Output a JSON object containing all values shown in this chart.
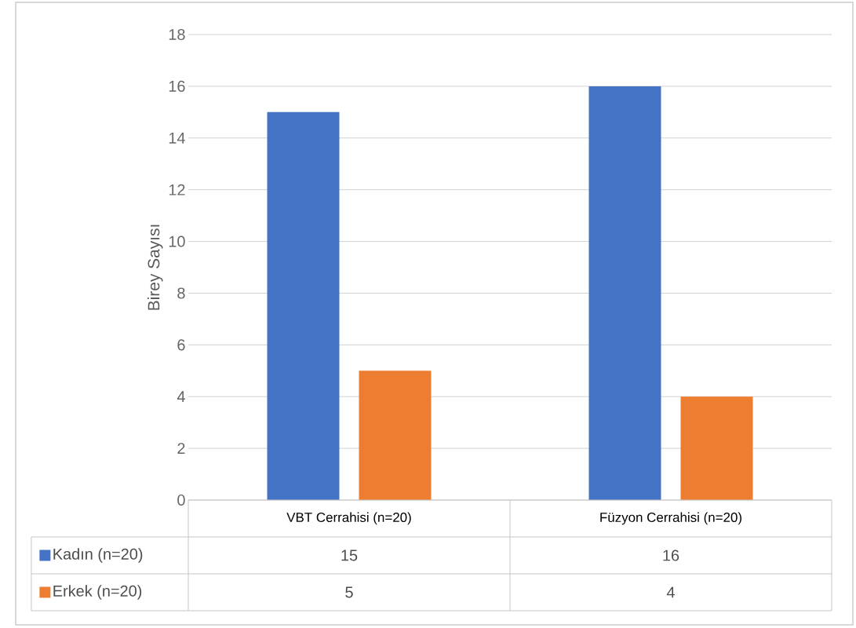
{
  "chart_data": {
    "type": "bar",
    "ylabel": "Birey Sayısı",
    "categories": [
      "VBT Cerrahisi (n=20)",
      "Füzyon Cerrahisi (n=20)"
    ],
    "series": [
      {
        "name": "Kadın (n=20)",
        "color": "#4472c4",
        "values": [
          15,
          16
        ]
      },
      {
        "name": "Erkek (n=20)",
        "color": "#ed7d31",
        "values": [
          5,
          4
        ]
      }
    ],
    "ylim": [
      0,
      18
    ],
    "yticks": [
      0,
      2,
      4,
      6,
      8,
      10,
      12,
      14,
      16,
      18
    ],
    "grid": "y",
    "legend": "bottom",
    "data_labels": true
  }
}
